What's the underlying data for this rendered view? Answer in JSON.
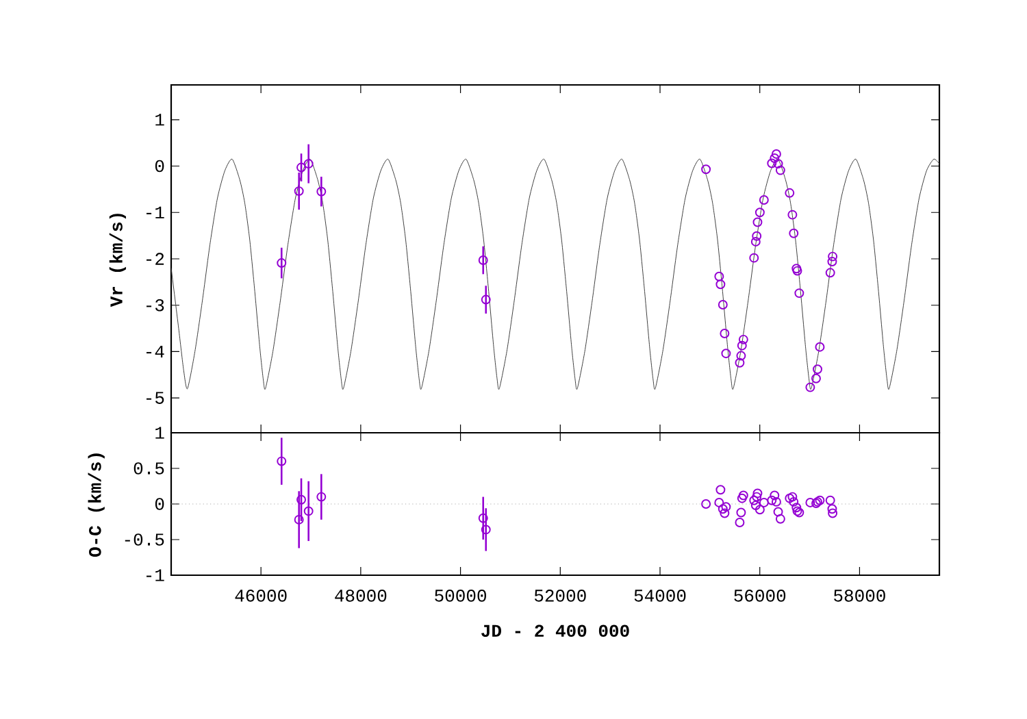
{
  "chart_data": [
    {
      "type": "scatter",
      "ylabel": "Vr (km/s)",
      "xlim": [
        44200,
        59600
      ],
      "ylim": [
        -5.75,
        1.75
      ],
      "xticks": [
        46000,
        48000,
        50000,
        52000,
        54000,
        56000,
        58000
      ],
      "yticks": [
        -5,
        -4,
        -3,
        -2,
        -1,
        0,
        1
      ],
      "tick_labels": "y",
      "series": [
        {
          "type": "line",
          "color": "#404040",
          "marker": "none",
          "line_style": "solid",
          "x": [
            44200,
            44350,
            44450,
            44526,
            44676,
            44826,
            44976,
            45126,
            45276,
            45422,
            45576,
            45676,
            45776,
            45876,
            45976,
            46046,
            46089,
            46239,
            46389,
            46539,
            46689,
            46839,
            46985,
            47139,
            47239,
            47339,
            47439,
            47539,
            47609,
            47652,
            47802,
            47952,
            48102,
            48252,
            48402,
            48548,
            48702,
            48802,
            48902,
            49002,
            49102,
            49172,
            49215,
            49365,
            49515,
            49665,
            49815,
            49965,
            50111,
            50265,
            50365,
            50465,
            50565,
            50665,
            50735,
            50778,
            50928,
            51078,
            51228,
            51378,
            51528,
            51674,
            51828,
            51928,
            52028,
            52128,
            52228,
            52298,
            52341,
            52491,
            52641,
            52791,
            52941,
            53091,
            53237,
            53391,
            53491,
            53591,
            53691,
            53791,
            53861,
            53904,
            54054,
            54204,
            54354,
            54504,
            54654,
            54800,
            54954,
            55054,
            55154,
            55254,
            55354,
            55424,
            55467,
            55617,
            55767,
            55917,
            56067,
            56217,
            56363,
            56517,
            56617,
            56717,
            56817,
            56917,
            56987,
            57030,
            57180,
            57330,
            57480,
            57630,
            57780,
            57926,
            58080,
            58180,
            58280,
            58380,
            58480,
            58550,
            58593,
            58743,
            58893,
            59043,
            59193,
            59343,
            59489,
            59600
          ],
          "values": [
            -2.2,
            -3.5,
            -4.4,
            -4.8,
            -4.0,
            -2.9,
            -1.7,
            -0.7,
            -0.1,
            0.15,
            -0.3,
            -0.8,
            -1.6,
            -2.7,
            -3.9,
            -4.6,
            -4.8,
            -4.0,
            -2.9,
            -1.7,
            -0.7,
            -0.1,
            0.15,
            -0.3,
            -0.8,
            -1.6,
            -2.7,
            -3.9,
            -4.6,
            -4.8,
            -4.0,
            -2.9,
            -1.7,
            -0.7,
            -0.1,
            0.15,
            -0.3,
            -0.8,
            -1.6,
            -2.7,
            -3.9,
            -4.6,
            -4.8,
            -4.0,
            -2.9,
            -1.7,
            -0.7,
            -0.1,
            0.15,
            -0.3,
            -0.8,
            -1.6,
            -2.7,
            -3.9,
            -4.6,
            -4.8,
            -4.0,
            -2.9,
            -1.7,
            -0.7,
            -0.1,
            0.15,
            -0.3,
            -0.8,
            -1.6,
            -2.7,
            -3.9,
            -4.6,
            -4.8,
            -4.0,
            -2.9,
            -1.7,
            -0.7,
            -0.1,
            0.15,
            -0.3,
            -0.8,
            -1.6,
            -2.7,
            -3.9,
            -4.6,
            -4.8,
            -4.0,
            -2.9,
            -1.7,
            -0.7,
            -0.1,
            0.15,
            -0.3,
            -0.8,
            -1.6,
            -2.7,
            -3.9,
            -4.6,
            -4.8,
            -4.0,
            -2.9,
            -1.7,
            -0.7,
            -0.1,
            0.15,
            -0.3,
            -0.8,
            -1.6,
            -2.7,
            -3.9,
            -4.6,
            -4.8,
            -4.0,
            -2.9,
            -1.7,
            -0.7,
            -0.1,
            0.15,
            -0.3,
            -0.8,
            -1.6,
            -2.7,
            -3.9,
            -4.6,
            -4.8,
            -4.0,
            -2.9,
            -1.7,
            -0.7,
            -0.1,
            0.15,
            0.05
          ]
        },
        {
          "type": "scatter",
          "color": "#9400d3",
          "marker": "circle",
          "x": [
            46413,
            46762,
            46808,
            46954,
            47210,
            50455,
            50510,
            54921,
            55185,
            55213,
            55260,
            55295,
            55323,
            55598,
            55625,
            55644,
            55672,
            55884,
            55919,
            55938,
            55955,
            56002,
            56084,
            56241,
            56296,
            56332,
            56368,
            56414,
            56598,
            56654,
            56680,
            56735,
            56752,
            56791,
            57011,
            57129,
            57157,
            57204,
            57413,
            57451,
            57460
          ],
          "values": [
            -2.09,
            -0.54,
            -0.03,
            0.05,
            -0.55,
            -2.03,
            -2.88,
            -0.07,
            -2.38,
            -2.55,
            -2.99,
            -3.61,
            -4.04,
            -4.24,
            -4.09,
            -3.87,
            -3.74,
            -1.98,
            -1.63,
            -1.51,
            -1.21,
            -1.0,
            -0.73,
            0.06,
            0.17,
            0.26,
            0.05,
            -0.09,
            -0.58,
            -1.05,
            -1.45,
            -2.21,
            -2.26,
            -2.74,
            -4.77,
            -4.58,
            -4.38,
            -3.9,
            -2.3,
            -2.06,
            -1.95
          ],
          "errors": [
            0.33,
            0.4,
            0.3,
            0.42,
            0.32,
            0.3,
            0.3,
            null,
            null,
            null,
            null,
            null,
            null,
            null,
            null,
            null,
            null,
            null,
            null,
            null,
            null,
            null,
            null,
            null,
            null,
            null,
            null,
            null,
            null,
            null,
            null,
            null,
            null,
            null,
            null,
            null,
            null,
            null,
            null,
            null,
            null
          ]
        }
      ]
    },
    {
      "type": "scatter",
      "xlabel": "JD - 2 400 000",
      "ylabel": "O-C (km/s)",
      "xlim": [
        44200,
        59600
      ],
      "ylim": [
        -1,
        1
      ],
      "xticks": [
        46000,
        48000,
        50000,
        52000,
        54000,
        56000,
        58000
      ],
      "yticks": [
        -1,
        -0.5,
        0,
        0.5,
        1
      ],
      "ref_lines": [
        {
          "axis": "y",
          "value": 0,
          "color": "#aaaaaa",
          "line_style": "dotted"
        }
      ],
      "series": [
        {
          "type": "scatter",
          "color": "#9400d3",
          "marker": "circle",
          "x": [
            46413,
            46762,
            46808,
            46954,
            47210,
            50455,
            50510,
            54921,
            55185,
            55213,
            55260,
            55295,
            55323,
            55598,
            55625,
            55644,
            55672,
            55884,
            55919,
            55938,
            55955,
            56002,
            56084,
            56241,
            56296,
            56332,
            56368,
            56414,
            56598,
            56654,
            56680,
            56735,
            56752,
            56791,
            57011,
            57129,
            57157,
            57204,
            57413,
            57451,
            57460
          ],
          "values": [
            0.6,
            -0.22,
            0.06,
            -0.1,
            0.1,
            -0.2,
            -0.36,
            0,
            0.02,
            0.2,
            -0.07,
            -0.13,
            -0.04,
            -0.26,
            -0.12,
            0.08,
            0.12,
            0.05,
            -0.02,
            0.1,
            0.15,
            -0.08,
            0.02,
            0.05,
            0.12,
            0.03,
            -0.11,
            -0.21,
            0.08,
            0.1,
            0.03,
            -0.05,
            -0.1,
            -0.12,
            0.02,
            0.01,
            0.03,
            0.05,
            0.05,
            -0.07,
            -0.13
          ],
          "errors": [
            0.33,
            0.4,
            0.3,
            0.42,
            0.32,
            0.3,
            0.3,
            null,
            null,
            null,
            null,
            null,
            null,
            null,
            null,
            null,
            null,
            null,
            null,
            null,
            null,
            null,
            null,
            null,
            null,
            null,
            null,
            null,
            null,
            null,
            null,
            null,
            null,
            null,
            null,
            null,
            null,
            null,
            null,
            null,
            null
          ]
        }
      ]
    }
  ]
}
